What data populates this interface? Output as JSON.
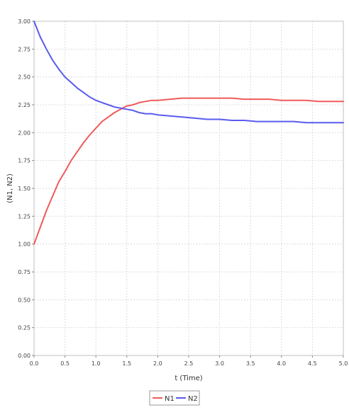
{
  "chart_data": {
    "type": "line",
    "title": "",
    "xlabel": "t (Time)",
    "ylabel": "(N1, N2)",
    "xlim": [
      0.0,
      5.0
    ],
    "ylim": [
      0.0,
      3.0
    ],
    "xticks": [
      "0.0",
      "0.5",
      "1.0",
      "1.5",
      "2.0",
      "2.5",
      "3.0",
      "3.5",
      "4.0",
      "4.5",
      "5.0"
    ],
    "yticks": [
      "0.00",
      "0.25",
      "0.50",
      "0.75",
      "1.00",
      "1.25",
      "1.50",
      "1.75",
      "2.00",
      "2.25",
      "2.50",
      "2.75",
      "3.00"
    ],
    "grid": true,
    "legend_position": "bottom-center",
    "series": [
      {
        "name": "N1",
        "color": "#f05a5a",
        "x": [
          0.0,
          0.1,
          0.2,
          0.3,
          0.4,
          0.5,
          0.6,
          0.7,
          0.8,
          0.9,
          1.0,
          1.1,
          1.2,
          1.3,
          1.4,
          1.5,
          1.6,
          1.7,
          1.8,
          1.9,
          2.0,
          2.2,
          2.4,
          2.6,
          2.8,
          3.0,
          3.2,
          3.4,
          3.6,
          3.8,
          4.0,
          4.2,
          4.4,
          4.6,
          4.8,
          5.0
        ],
        "y": [
          1.0,
          1.15,
          1.3,
          1.43,
          1.56,
          1.65,
          1.75,
          1.83,
          1.91,
          1.98,
          2.04,
          2.1,
          2.14,
          2.18,
          2.21,
          2.24,
          2.25,
          2.27,
          2.28,
          2.29,
          2.29,
          2.3,
          2.31,
          2.31,
          2.31,
          2.31,
          2.31,
          2.3,
          2.3,
          2.3,
          2.29,
          2.29,
          2.29,
          2.28,
          2.28,
          2.28
        ]
      },
      {
        "name": "N2",
        "color": "#5a5af0",
        "x": [
          0.0,
          0.1,
          0.2,
          0.3,
          0.4,
          0.5,
          0.6,
          0.7,
          0.8,
          0.9,
          1.0,
          1.1,
          1.2,
          1.3,
          1.4,
          1.5,
          1.6,
          1.7,
          1.8,
          1.9,
          2.0,
          2.2,
          2.4,
          2.6,
          2.8,
          3.0,
          3.2,
          3.4,
          3.6,
          3.8,
          4.0,
          4.2,
          4.4,
          4.6,
          4.8,
          5.0
        ],
        "y": [
          3.0,
          2.86,
          2.75,
          2.65,
          2.57,
          2.5,
          2.45,
          2.4,
          2.36,
          2.32,
          2.29,
          2.27,
          2.25,
          2.23,
          2.22,
          2.21,
          2.2,
          2.18,
          2.17,
          2.17,
          2.16,
          2.15,
          2.14,
          2.13,
          2.12,
          2.12,
          2.11,
          2.11,
          2.1,
          2.1,
          2.1,
          2.1,
          2.09,
          2.09,
          2.09,
          2.09
        ]
      }
    ]
  }
}
